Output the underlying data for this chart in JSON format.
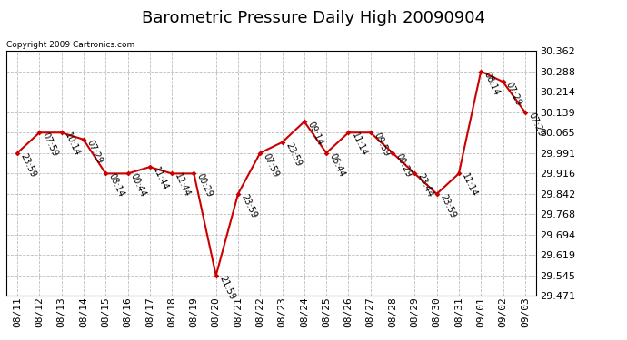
{
  "title": "Barometric Pressure Daily High 20090904",
  "copyright": "Copyright 2009 Cartronics.com",
  "dates": [
    "08/11",
    "08/12",
    "08/13",
    "08/14",
    "08/15",
    "08/16",
    "08/17",
    "08/18",
    "08/19",
    "08/20",
    "08/21",
    "08/22",
    "08/23",
    "08/24",
    "08/25",
    "08/26",
    "08/27",
    "08/28",
    "08/29",
    "08/30",
    "08/31",
    "09/01",
    "09/02",
    "09/03"
  ],
  "values": [
    29.991,
    30.065,
    30.065,
    30.04,
    29.916,
    29.916,
    29.94,
    29.916,
    29.916,
    29.545,
    29.842,
    29.991,
    30.03,
    30.105,
    29.991,
    30.065,
    30.065,
    29.991,
    29.916,
    29.842,
    29.916,
    30.288,
    30.25,
    30.139
  ],
  "times": [
    "23:59",
    "07:59",
    "10:14",
    "07:29",
    "08:14",
    "00:44",
    "11:44",
    "12:44",
    "00:29",
    "21:59",
    "23:59",
    "07:59",
    "23:59",
    "09:14",
    "06:44",
    "11:14",
    "09:59",
    "00:29",
    "23:44",
    "23:59",
    "11:14",
    "08:14",
    "07:29",
    "07:29"
  ],
  "ylim_min": 29.471,
  "ylim_max": 30.362,
  "yticks": [
    29.471,
    29.545,
    29.619,
    29.694,
    29.768,
    29.842,
    29.916,
    29.991,
    30.065,
    30.139,
    30.214,
    30.288,
    30.362
  ],
  "line_color": "#cc0000",
  "marker_color": "#cc0000",
  "bg_color": "#ffffff",
  "grid_color": "#bbbbbb",
  "title_fontsize": 13,
  "annotation_fontsize": 7,
  "tick_fontsize": 8
}
